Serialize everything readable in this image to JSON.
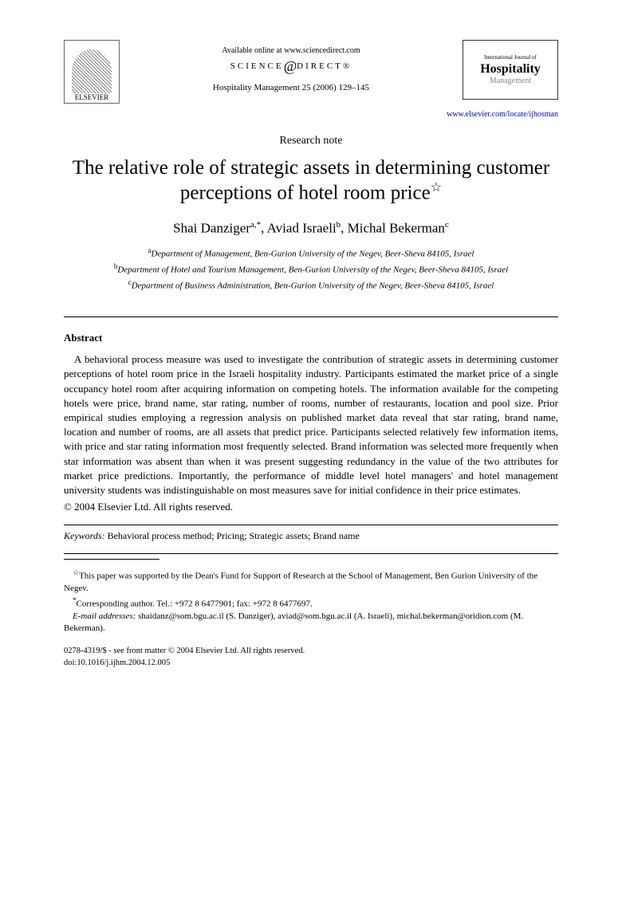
{
  "header": {
    "elsevier": "ELSEVIER",
    "available_online": "Available online at www.sciencedirect.com",
    "science": "SCIENCE",
    "direct": "DIRECT",
    "journal_cite": "Hospitality Management 25 (2006) 129–145",
    "journal_logo_top": "International Journal of",
    "journal_logo_main": "Hospitality",
    "journal_logo_sub": "Management",
    "journal_url": "www.elsevier.com/locate/ijhosman"
  },
  "article_type": "Research note",
  "title": "The relative role of strategic assets in determining customer perceptions of hotel room price",
  "authors": {
    "a1_name": "Shai Danziger",
    "a1_sup": "a,*",
    "a2_name": "Aviad Israeli",
    "a2_sup": "b",
    "a3_name": "Michal Bekerman",
    "a3_sup": "c"
  },
  "affiliations": {
    "a": "Department of Management, Ben-Gurion University of the Negev, Beer-Sheva 84105, Israel",
    "b": "Department of Hotel and Tourism Management, Ben-Gurion University of the Negev, Beer-Sheva 84105, Israel",
    "c": "Department of Business Administration, Ben-Gurion University of the Negev, Beer-Sheva 84105, Israel"
  },
  "abstract": {
    "heading": "Abstract",
    "body": "A behavioral process measure was used to investigate the contribution of strategic assets in determining customer perceptions of hotel room price in the Israeli hospitality industry. Participants estimated the market price of a single occupancy hotel room after acquiring information on competing hotels. The information available for the competing hotels were price, brand name, star rating, number of rooms, number of restaurants, location and pool size. Prior empirical studies employing a regression analysis on published market data reveal that star rating, brand name, location and number of rooms, are all assets that predict price. Participants selected relatively few information items, with price and star rating information most frequently selected. Brand information was selected more frequently when star information was absent than when it was present suggesting redundancy in the value of the two attributes for market price predictions. Importantly, the performance of middle level hotel managers' and hotel management university students was indistinguishable on most measures save for initial confidence in their price estimates.",
    "copyright": "© 2004 Elsevier Ltd. All rights reserved."
  },
  "keywords": {
    "label": "Keywords:",
    "text": " Behavioral process method; Pricing; Strategic assets; Brand name"
  },
  "footnotes": {
    "funding": "This paper was supported by the Dean's Fund for Support of Research at the School of Management, Ben Gurion University of the Negev.",
    "corresponding": "Corresponding author. Tel.: +972 8 6477901; fax: +972 8 6477697.",
    "email_label": "E-mail addresses:",
    "emails": " shaidanz@som.bgu.ac.il (S. Danziger), aviad@som.bgu.ac.il (A. Israeli), michal.bekerman@oridion.com (M. Bekerman)."
  },
  "bottom": {
    "issn": "0278-4319/$ - see front matter © 2004 Elsevier Ltd. All rights reserved.",
    "doi": "doi:10.1016/j.ijhm.2004.12.005"
  }
}
